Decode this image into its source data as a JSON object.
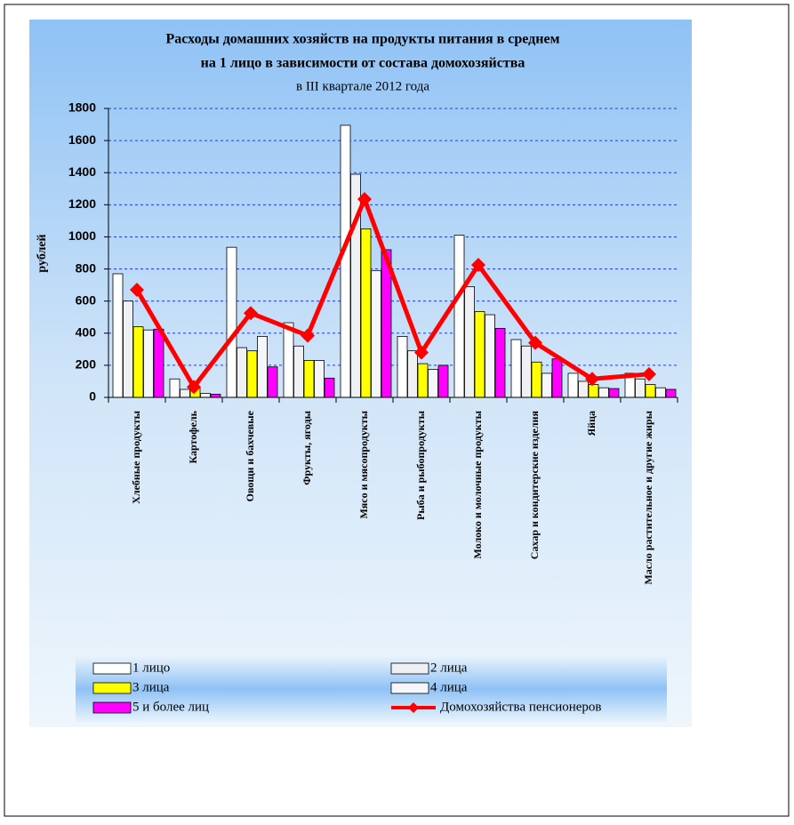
{
  "chart_data": {
    "type": "bar",
    "title": [
      "Расходы домашних хозяйств на продукты питания в среднем",
      "на 1 лицо в зависимости от состава домохозяйства"
    ],
    "subtitle": "в III квартале 2012 года",
    "y_label": "рублей",
    "categories": [
      "Хлебные продукты",
      "Картофель",
      "Овощи и бахчевые",
      "Фрукты, ягоды",
      "Мясо и мясопродукты",
      "Рыба и рыбопродукты",
      "Молоко и молочные продукты",
      "Сахар и кондитерские изделия",
      "Яйца",
      "Масло растительное и другие жиры"
    ],
    "series": [
      {
        "name": "1 лицо",
        "color": "#ffffff",
        "values": [
          770,
          115,
          935,
          465,
          1695,
          380,
          1010,
          360,
          150,
          150
        ]
      },
      {
        "name": "2 лица",
        "color": "#eef0f4",
        "values": [
          600,
          50,
          310,
          320,
          1390,
          290,
          690,
          320,
          100,
          115
        ]
      },
      {
        "name": "3 лица",
        "color": "#ffff00",
        "values": [
          440,
          60,
          290,
          230,
          1050,
          210,
          535,
          220,
          80,
          80
        ]
      },
      {
        "name": "4 лица",
        "color": "#f4f6fa",
        "values": [
          420,
          25,
          380,
          230,
          790,
          175,
          515,
          150,
          60,
          60
        ]
      },
      {
        "name": "5 и более лиц",
        "color": "#ff00ff",
        "values": [
          425,
          20,
          190,
          120,
          920,
          200,
          430,
          240,
          55,
          50
        ]
      },
      {
        "name": "Домохозяйства пенсионеров",
        "color": "#ff0000",
        "type": "line",
        "values": [
          670,
          65,
          525,
          385,
          1235,
          280,
          825,
          340,
          115,
          145
        ]
      }
    ],
    "ylim": [
      0,
      1800
    ],
    "yticks": [
      0,
      200,
      400,
      600,
      800,
      1000,
      1200,
      1400,
      1600,
      1800
    ],
    "grid": true
  }
}
